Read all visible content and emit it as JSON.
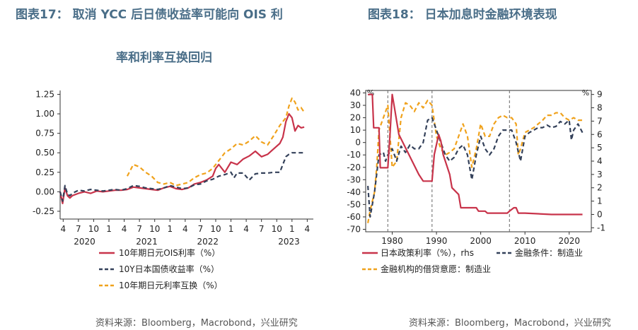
{
  "left": {
    "title_line1": "图表17：  取消 YCC 后日债收益率可能向 OIS 利",
    "title_line2": "率和利率互换回归",
    "source": "资料来源：Bloomberg，Macrobond，兴业研究",
    "chart_data": {
      "type": "line",
      "ylim": [
        -0.35,
        1.3
      ],
      "yticks": [
        -0.25,
        0.0,
        0.25,
        0.5,
        0.75,
        1.0,
        1.25
      ],
      "ytick_labels": [
        "-0.25",
        "0.00",
        "0.25",
        "0.50",
        "0.75",
        "1.00",
        "1.25"
      ],
      "xlim": [
        2019.2,
        2023.35
      ],
      "x_month_ticks": [
        {
          "x": 2019.25,
          "label": "4"
        },
        {
          "x": 2019.5,
          "label": "7"
        },
        {
          "x": 2019.75,
          "label": "10"
        },
        {
          "x": 2020.0,
          "label": "1"
        },
        {
          "x": 2020.25,
          "label": "4"
        },
        {
          "x": 2020.5,
          "label": "7"
        },
        {
          "x": 2020.75,
          "label": "10"
        },
        {
          "x": 2021.0,
          "label": "1"
        },
        {
          "x": 2021.25,
          "label": "4"
        },
        {
          "x": 2021.5,
          "label": "7"
        },
        {
          "x": 2021.75,
          "label": "10"
        },
        {
          "x": 2022.0,
          "label": "1"
        },
        {
          "x": 2022.25,
          "label": "4"
        },
        {
          "x": 2022.5,
          "label": "7"
        },
        {
          "x": 2022.75,
          "label": "10"
        },
        {
          "x": 2023.0,
          "label": "1"
        },
        {
          "x": 2023.25,
          "label": "4"
        }
      ],
      "x_year_labels": [
        {
          "x": 2019.6,
          "label": "2020"
        },
        {
          "x": 2020.62,
          "label": "2021"
        },
        {
          "x": 2021.62,
          "label": "2022"
        },
        {
          "x": 2022.95,
          "label": "2023"
        }
      ],
      "series": [
        {
          "name": "10年期日元OIS利率（%）",
          "color": "#c8334a",
          "style": "solid",
          "x": [
            2019.2,
            2019.24,
            2019.28,
            2019.32,
            2019.36,
            2019.4,
            2019.5,
            2019.6,
            2019.7,
            2019.8,
            2019.9,
            2020.0,
            2020.1,
            2020.2,
            2020.3,
            2020.4,
            2020.5,
            2020.6,
            2020.7,
            2020.8,
            2020.9,
            2021.0,
            2021.1,
            2021.2,
            2021.3,
            2021.4,
            2021.5,
            2021.6,
            2021.7,
            2021.75,
            2021.8,
            2021.9,
            2022.0,
            2022.1,
            2022.2,
            2022.3,
            2022.4,
            2022.5,
            2022.6,
            2022.7,
            2022.8,
            2022.85,
            2022.9,
            2022.95,
            2023.0,
            2023.05,
            2023.1,
            2023.15,
            2023.2
          ],
          "y": [
            0.0,
            -0.15,
            0.05,
            -0.05,
            -0.08,
            -0.05,
            -0.02,
            0.0,
            -0.02,
            0.01,
            0.0,
            0.01,
            0.02,
            0.02,
            0.03,
            0.06,
            0.05,
            0.04,
            0.03,
            0.02,
            0.05,
            0.07,
            0.04,
            0.03,
            0.05,
            0.1,
            0.12,
            0.15,
            0.2,
            0.3,
            0.35,
            0.25,
            0.38,
            0.35,
            0.42,
            0.46,
            0.52,
            0.45,
            0.48,
            0.55,
            0.62,
            0.7,
            0.9,
            1.0,
            0.95,
            0.78,
            0.85,
            0.82,
            0.83
          ]
        },
        {
          "name": "10Y日本国债收益率（%）",
          "color": "#34415a",
          "style": "dashed",
          "x": [
            2019.2,
            2019.24,
            2019.28,
            2019.32,
            2019.36,
            2019.4,
            2019.5,
            2019.6,
            2019.7,
            2019.8,
            2019.9,
            2020.0,
            2020.1,
            2020.2,
            2020.3,
            2020.4,
            2020.5,
            2020.6,
            2020.7,
            2020.8,
            2020.9,
            2021.0,
            2021.1,
            2021.2,
            2021.3,
            2021.4,
            2021.5,
            2021.6,
            2021.7,
            2021.8,
            2021.9,
            2022.0,
            2022.05,
            2022.1,
            2022.2,
            2022.3,
            2022.4,
            2022.5,
            2022.6,
            2022.7,
            2022.8,
            2022.85,
            2022.9,
            2022.95,
            2023.0,
            2023.05,
            2023.1,
            2023.15,
            2023.2
          ],
          "y": [
            0.0,
            -0.12,
            0.08,
            -0.03,
            -0.05,
            -0.02,
            0.02,
            0.01,
            0.03,
            0.02,
            0.01,
            0.02,
            0.03,
            0.02,
            0.04,
            0.08,
            0.07,
            0.05,
            0.04,
            0.03,
            0.05,
            0.08,
            0.06,
            0.04,
            0.05,
            0.09,
            0.1,
            0.14,
            0.16,
            0.2,
            0.22,
            0.25,
            0.18,
            0.24,
            0.24,
            0.15,
            0.23,
            0.24,
            0.24,
            0.25,
            0.25,
            0.35,
            0.45,
            0.48,
            0.5,
            0.5,
            0.5,
            0.5,
            0.5
          ]
        },
        {
          "name": "10年期日元利率互换（%）",
          "color": "#f0a21c",
          "style": "dashed",
          "x": [
            2020.3,
            2020.4,
            2020.5,
            2020.6,
            2020.7,
            2020.8,
            2020.9,
            2021.0,
            2021.1,
            2021.2,
            2021.3,
            2021.4,
            2021.5,
            2021.6,
            2021.7,
            2021.8,
            2021.9,
            2022.0,
            2022.1,
            2022.2,
            2022.3,
            2022.4,
            2022.5,
            2022.6,
            2022.7,
            2022.8,
            2022.9,
            2022.95,
            2023.0,
            2023.05,
            2023.1,
            2023.15,
            2023.2
          ],
          "y": [
            0.2,
            0.35,
            0.32,
            0.25,
            0.2,
            0.12,
            0.1,
            0.12,
            0.08,
            0.1,
            0.12,
            0.18,
            0.22,
            0.24,
            0.3,
            0.4,
            0.5,
            0.55,
            0.62,
            0.6,
            0.65,
            0.72,
            0.64,
            0.6,
            0.72,
            0.85,
            0.95,
            1.1,
            1.2,
            1.15,
            1.05,
            1.08,
            1.02
          ]
        }
      ]
    }
  },
  "right": {
    "title": "图表18：  日本加息时金融环境表现",
    "source": "资料来源：Bloomberg，Macrobond，兴业研究",
    "chart_data": {
      "type": "line",
      "xlim": [
        1974,
        2025
      ],
      "xticks": [
        1980,
        1990,
        2000,
        2010,
        2020
      ],
      "xtick_labels": [
        "1980",
        "1990",
        "2000",
        "2010",
        "2020"
      ],
      "left_axis": {
        "label": "%",
        "ylim": [
          -72,
          42
        ],
        "ticks": [
          40,
          30,
          20,
          10,
          0,
          -10,
          -20,
          -30,
          -40,
          -50,
          -60,
          -70
        ]
      },
      "right_axis": {
        "label": "%",
        "ylim": [
          -1.3,
          9.3
        ],
        "ticks": [
          9,
          8,
          7,
          6,
          5,
          4,
          3,
          2,
          1,
          0,
          -1
        ]
      },
      "vlines": [
        1979,
        1989,
        2006.5
      ],
      "series": [
        {
          "name": "日本政策利率（%），rhs",
          "axis": "right",
          "color": "#c8334a",
          "style": "solid",
          "x": [
            1974.5,
            1975.5,
            1975.8,
            1977,
            1977.3,
            1979,
            1979.5,
            1980,
            1980.5,
            1981,
            1981.5,
            1983,
            1986,
            1987,
            1989,
            1989.5,
            1990.5,
            1991,
            1991.5,
            1993,
            1993.5,
            1995,
            1995.5,
            1999,
            1999.5,
            2001,
            2001.5,
            2006,
            2006.5,
            2007.5,
            2008,
            2008.5,
            2010,
            2016,
            2023
          ],
          "y": [
            9,
            9,
            6.5,
            6.5,
            3.5,
            3.5,
            6,
            9,
            8,
            7,
            6,
            5,
            3,
            2.5,
            2.5,
            4.5,
            6,
            5.5,
            4.5,
            3,
            2,
            1.5,
            0.5,
            0.5,
            0.25,
            0.25,
            0.1,
            0.1,
            0.25,
            0.5,
            0.5,
            0.1,
            0.1,
            0,
            0
          ]
        },
        {
          "name": "金融条件：制造业",
          "axis": "left",
          "color": "#34415a",
          "style": "dashed",
          "x": [
            1974.5,
            1975,
            1976,
            1977,
            1978,
            1978.5,
            1979,
            1980,
            1981,
            1982,
            1983,
            1984,
            1985,
            1986,
            1987,
            1988,
            1989,
            1990,
            1991,
            1992,
            1993,
            1994,
            1995,
            1996,
            1997,
            1998,
            1999,
            2000,
            2001,
            2002,
            2003,
            2004,
            2005,
            2006,
            2007,
            2008,
            2009,
            2010,
            2011,
            2012,
            2013,
            2014,
            2015,
            2016,
            2017,
            2018,
            2019,
            2020,
            2020.5,
            2021,
            2022,
            2023
          ],
          "y": [
            -35,
            -60,
            -40,
            -10,
            -8,
            -15,
            -10,
            -5,
            -15,
            -3,
            -8,
            -2,
            -5,
            -5,
            0,
            18,
            20,
            10,
            0,
            -10,
            -15,
            -12,
            -5,
            -2,
            -10,
            -30,
            -10,
            5,
            -5,
            -10,
            -5,
            5,
            10,
            10,
            10,
            0,
            -15,
            5,
            8,
            10,
            12,
            12,
            14,
            12,
            13,
            17,
            15,
            18,
            2,
            10,
            15,
            8
          ]
        },
        {
          "name": "金融机构的借贷意愿：制造业",
          "axis": "left",
          "color": "#f0a21c",
          "style": "dashed",
          "x": [
            1974.5,
            1975,
            1976,
            1976.5,
            1977,
            1978,
            1979,
            1980,
            1981,
            1982,
            1983,
            1984,
            1985,
            1986,
            1987,
            1988,
            1989,
            1990,
            1991,
            1992,
            1993,
            1994,
            1995,
            1996,
            1997,
            1998,
            1999,
            2000,
            2001,
            2002,
            2003,
            2004,
            2005,
            2006,
            2007,
            2008,
            2008.5,
            2009,
            2010,
            2011,
            2012,
            2013,
            2014,
            2015,
            2016,
            2017,
            2018,
            2019,
            2020,
            2021,
            2022,
            2023
          ],
          "y": [
            -65,
            -55,
            -40,
            -20,
            10,
            20,
            30,
            -20,
            -15,
            20,
            32,
            30,
            25,
            32,
            28,
            34,
            30,
            5,
            -5,
            -10,
            -8,
            -5,
            5,
            15,
            5,
            -20,
            -5,
            15,
            5,
            5,
            15,
            20,
            22,
            20,
            20,
            15,
            -10,
            -5,
            8,
            10,
            12,
            15,
            18,
            22,
            22,
            24,
            24,
            20,
            18,
            20,
            18,
            18
          ]
        }
      ],
      "legend": [
        {
          "name": "日本政策利率（%），rhs",
          "color": "#c8334a",
          "style": "solid"
        },
        {
          "name": "金融条件：制造业",
          "color": "#34415a",
          "style": "dashed"
        },
        {
          "name": "金融机构的借贷意愿：制造业",
          "color": "#f0a21c",
          "style": "dashed"
        }
      ]
    }
  }
}
